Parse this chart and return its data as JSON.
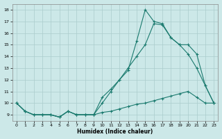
{
  "xlabel": "Humidex (Indice chaleur)",
  "bg_color": "#cce8e8",
  "grid_color": "#aacccc",
  "line_color": "#1a7a6e",
  "xlim_min": -0.5,
  "xlim_max": 23.5,
  "ylim_min": 8.5,
  "ylim_max": 18.5,
  "xticks": [
    0,
    1,
    2,
    3,
    4,
    5,
    6,
    7,
    8,
    9,
    10,
    11,
    12,
    13,
    14,
    15,
    16,
    17,
    18,
    19,
    20,
    21,
    22,
    23
  ],
  "yticks": [
    9,
    10,
    11,
    12,
    13,
    14,
    15,
    16,
    17,
    18
  ],
  "line1_x": [
    0,
    1,
    2,
    3,
    4,
    5,
    6,
    7,
    8,
    9,
    10,
    11,
    12,
    13,
    14,
    15,
    16,
    17,
    18,
    19,
    20,
    21,
    22,
    23
  ],
  "line1_y": [
    10,
    9.3,
    9.0,
    9.0,
    9.0,
    8.8,
    9.3,
    9.0,
    9.0,
    9.0,
    9.2,
    9.3,
    9.5,
    9.7,
    9.9,
    10.0,
    10.2,
    10.4,
    10.6,
    10.8,
    11.0,
    10.5,
    10.0,
    10.0
  ],
  "line2_x": [
    0,
    1,
    2,
    3,
    4,
    5,
    6,
    7,
    8,
    9,
    10,
    11,
    12,
    13,
    14,
    15,
    16,
    17,
    18,
    19,
    20,
    21,
    22,
    23
  ],
  "line2_y": [
    10,
    9.3,
    9.0,
    9.0,
    9.0,
    8.8,
    9.3,
    9.0,
    9.0,
    9.0,
    10.5,
    11.2,
    12.0,
    12.8,
    15.3,
    18.0,
    17.0,
    16.8,
    15.6,
    15.0,
    14.2,
    13.0,
    11.5,
    10.0
  ],
  "line3_x": [
    0,
    1,
    2,
    3,
    4,
    5,
    6,
    7,
    8,
    9,
    10,
    11,
    12,
    13,
    14,
    15,
    16,
    17,
    18,
    19,
    20,
    21,
    22,
    23
  ],
  "line3_y": [
    10,
    9.3,
    9.0,
    9.0,
    9.0,
    8.8,
    9.3,
    9.0,
    9.0,
    9.0,
    10.0,
    11.0,
    12.0,
    13.0,
    14.0,
    15.0,
    16.8,
    16.7,
    15.6,
    15.0,
    15.0,
    14.2,
    11.5,
    10.0
  ]
}
